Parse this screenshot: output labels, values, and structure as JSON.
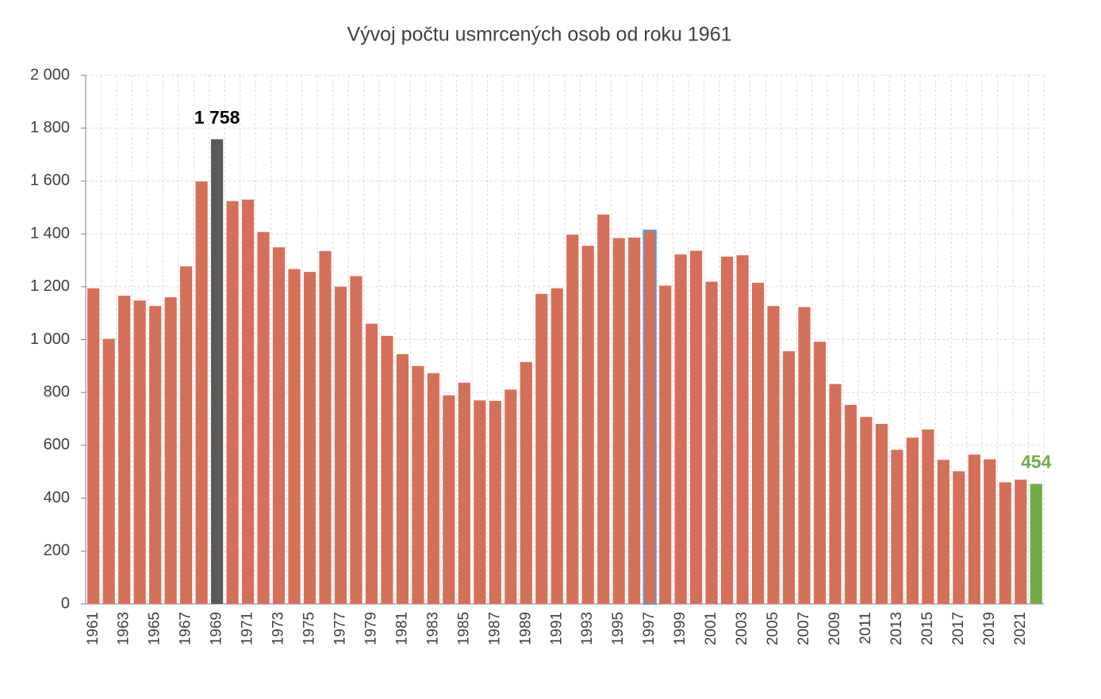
{
  "chart_data": {
    "type": "bar",
    "title": "Vývoj počtu usmrcených osob od roku 1961",
    "categories": [
      "1961",
      null,
      "1963",
      null,
      "1965",
      null,
      "1967",
      null,
      "1969",
      null,
      "1971",
      null,
      "1973",
      null,
      "1975",
      null,
      "1977",
      null,
      "1979",
      null,
      "1981",
      null,
      "1983",
      null,
      "1985",
      null,
      "1987",
      null,
      "1989",
      null,
      "1991",
      null,
      "1993",
      null,
      "1995",
      null,
      "1997",
      null,
      "1999",
      null,
      "2001",
      null,
      "2003",
      null,
      "2005",
      null,
      "2007",
      null,
      "2009",
      null,
      "2011",
      null,
      "2013",
      null,
      "2015",
      null,
      "2017",
      null,
      "2019",
      null,
      "2021",
      null
    ],
    "values": [
      1194,
      1003,
      1166,
      1148,
      1127,
      1160,
      1277,
      1598,
      1758,
      1524,
      1530,
      1407,
      1349,
      1267,
      1256,
      1335,
      1200,
      1240,
      1060,
      1014,
      945,
      900,
      873,
      789,
      837,
      770,
      768,
      811,
      915,
      1173,
      1194,
      1397,
      1355,
      1473,
      1384,
      1386,
      1413,
      1204,
      1322,
      1336,
      1219,
      1314,
      1319,
      1215,
      1127,
      956,
      1123,
      992,
      832,
      753,
      707,
      681,
      583,
      629,
      660,
      545,
      502,
      565,
      547,
      460,
      470,
      454
    ],
    "value_labels": [
      null,
      null,
      null,
      null,
      null,
      null,
      null,
      null,
      "1 758",
      null,
      null,
      null,
      null,
      null,
      null,
      null,
      null,
      null,
      null,
      null,
      null,
      null,
      null,
      null,
      null,
      null,
      null,
      null,
      null,
      null,
      null,
      null,
      null,
      null,
      null,
      null,
      null,
      null,
      null,
      null,
      null,
      null,
      null,
      null,
      null,
      null,
      null,
      null,
      null,
      null,
      null,
      null,
      null,
      null,
      null,
      null,
      null,
      null,
      null,
      null,
      null,
      "454"
    ],
    "color": "#d4705a",
    "colors": [
      null,
      null,
      null,
      null,
      null,
      null,
      null,
      null,
      "#595959",
      null,
      null,
      null,
      null,
      null,
      null,
      null,
      null,
      null,
      null,
      null,
      null,
      null,
      null,
      null,
      null,
      null,
      null,
      null,
      null,
      null,
      null,
      null,
      null,
      null,
      null,
      null,
      null,
      null,
      null,
      null,
      null,
      null,
      null,
      null,
      null,
      null,
      null,
      null,
      null,
      null,
      null,
      null,
      null,
      null,
      null,
      null,
      null,
      null,
      null,
      null,
      null,
      "#70ad47"
    ],
    "edge_colors": [
      null,
      null,
      null,
      null,
      null,
      null,
      null,
      null,
      null,
      null,
      null,
      null,
      null,
      null,
      null,
      null,
      null,
      null,
      null,
      null,
      null,
      null,
      null,
      null,
      null,
      null,
      null,
      null,
      null,
      null,
      null,
      null,
      null,
      null,
      null,
      null,
      "#5b9bd5",
      null,
      null,
      null,
      null,
      null,
      null,
      null,
      null,
      null,
      null,
      null,
      null,
      null,
      null,
      null,
      null,
      null,
      null,
      null,
      null,
      null,
      null,
      null,
      null,
      null
    ],
    "value_label_colors": [
      null,
      null,
      null,
      null,
      null,
      null,
      null,
      null,
      "#000000",
      null,
      null,
      null,
      null,
      null,
      null,
      null,
      null,
      null,
      null,
      null,
      null,
      null,
      null,
      null,
      null,
      null,
      null,
      null,
      null,
      null,
      null,
      null,
      null,
      null,
      null,
      null,
      null,
      null,
      null,
      null,
      null,
      null,
      null,
      null,
      null,
      null,
      null,
      null,
      null,
      null,
      null,
      null,
      null,
      null,
      null,
      null,
      null,
      null,
      null,
      null,
      null,
      "#70ad47"
    ],
    "ylim": [
      0,
      2000
    ],
    "yticks": [
      0,
      200,
      400,
      600,
      800,
      {
        "value": 1000,
        "label": "1 000"
      },
      {
        "value": 1200,
        "label": "1 200"
      },
      {
        "value": 1400,
        "label": "1 400"
      },
      {
        "value": 1600,
        "label": "1 600"
      },
      {
        "value": 1800,
        "label": "1 800"
      },
      {
        "value": 2000,
        "label": "2 000"
      }
    ],
    "grid": true
  }
}
